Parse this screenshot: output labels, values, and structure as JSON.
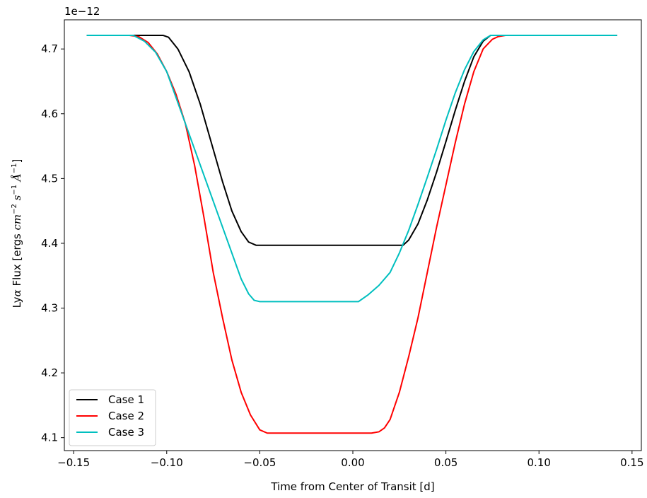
{
  "chart_data": {
    "type": "line",
    "title": "",
    "xlabel": "Time from Center of Transit [d]",
    "ylabel_parts": {
      "prefix": "Ly",
      "alpha": "α",
      "flux": " Flux [ergs ",
      "cm": "cm",
      "cm_exp": "−2",
      "s": " s",
      "s_exp": "−1",
      "ang": " Å",
      "ang_exp": "−1",
      "close": "]"
    },
    "offset_text": "1e−12",
    "xlim": [
      -0.155,
      0.155
    ],
    "ylim": [
      4.08,
      4.745
    ],
    "x_ticks": [
      -0.15,
      -0.1,
      -0.05,
      0.0,
      0.05,
      0.1,
      0.15
    ],
    "x_tick_labels": [
      "−0.15",
      "−0.10",
      "−0.05",
      "0.00",
      "0.05",
      "0.10",
      "0.15"
    ],
    "y_ticks": [
      4.1,
      4.2,
      4.3,
      4.4,
      4.5,
      4.6,
      4.7
    ],
    "y_tick_labels": [
      "4.1",
      "4.2",
      "4.3",
      "4.4",
      "4.5",
      "4.6",
      "4.7"
    ],
    "grid": false,
    "legend_position": "lower-left",
    "series": [
      {
        "name": "Case 1",
        "color": "#000000",
        "x": [
          -0.143,
          -0.102,
          -0.099,
          -0.094,
          -0.088,
          -0.082,
          -0.076,
          -0.07,
          -0.065,
          -0.06,
          -0.056,
          -0.052,
          -0.04,
          -0.02,
          0.0,
          0.02,
          0.027,
          0.03,
          0.035,
          0.04,
          0.045,
          0.05,
          0.055,
          0.06,
          0.065,
          0.07,
          0.074,
          0.142
        ],
        "y": [
          4.721,
          4.721,
          4.718,
          4.7,
          4.665,
          4.615,
          4.555,
          4.495,
          4.45,
          4.418,
          4.402,
          4.397,
          4.397,
          4.397,
          4.397,
          4.397,
          4.397,
          4.405,
          4.43,
          4.467,
          4.51,
          4.557,
          4.605,
          4.65,
          4.688,
          4.712,
          4.721,
          4.721
        ]
      },
      {
        "name": "Case 2",
        "color": "#ff0000",
        "x": [
          -0.143,
          -0.12,
          -0.115,
          -0.11,
          -0.105,
          -0.1,
          -0.095,
          -0.09,
          -0.085,
          -0.08,
          -0.075,
          -0.07,
          -0.065,
          -0.06,
          -0.055,
          -0.05,
          -0.046,
          -0.044,
          -0.03,
          -0.01,
          0.01,
          0.014,
          0.017,
          0.02,
          0.025,
          0.03,
          0.035,
          0.04,
          0.045,
          0.05,
          0.055,
          0.06,
          0.065,
          0.07,
          0.075,
          0.078,
          0.082,
          0.142
        ],
        "y": [
          4.721,
          4.721,
          4.719,
          4.71,
          4.692,
          4.665,
          4.63,
          4.585,
          4.52,
          4.44,
          4.355,
          4.285,
          4.22,
          4.17,
          4.135,
          4.112,
          4.107,
          4.107,
          4.107,
          4.107,
          4.107,
          4.109,
          4.115,
          4.128,
          4.17,
          4.225,
          4.285,
          4.355,
          4.425,
          4.49,
          4.555,
          4.615,
          4.665,
          4.7,
          4.715,
          4.719,
          4.721,
          4.721
        ]
      },
      {
        "name": "Case 3",
        "color": "#00bfbf",
        "x": [
          -0.143,
          -0.118,
          -0.112,
          -0.106,
          -0.1,
          -0.095,
          -0.09,
          -0.085,
          -0.08,
          -0.075,
          -0.07,
          -0.065,
          -0.06,
          -0.056,
          -0.053,
          -0.05,
          -0.03,
          -0.01,
          0.003,
          0.008,
          0.014,
          0.02,
          0.025,
          0.03,
          0.035,
          0.04,
          0.045,
          0.05,
          0.055,
          0.06,
          0.065,
          0.07,
          0.074,
          0.142
        ],
        "y": [
          4.721,
          4.721,
          4.712,
          4.695,
          4.665,
          4.625,
          4.585,
          4.545,
          4.505,
          4.465,
          4.425,
          4.385,
          4.345,
          4.322,
          4.312,
          4.31,
          4.31,
          4.31,
          4.31,
          4.32,
          4.335,
          4.355,
          4.385,
          4.42,
          4.46,
          4.502,
          4.545,
          4.59,
          4.632,
          4.668,
          4.696,
          4.714,
          4.721,
          4.721
        ]
      }
    ]
  }
}
